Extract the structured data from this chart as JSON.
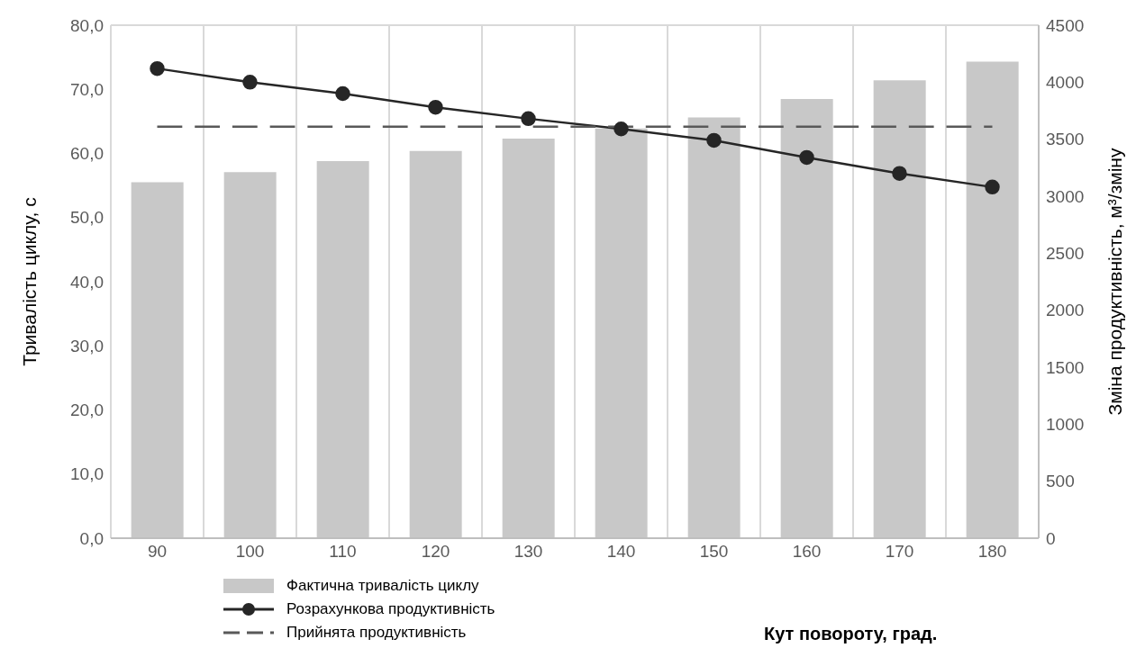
{
  "chart_data": {
    "type": "bar",
    "xlabel": "Кут повороту, град.",
    "ylabel": "Тривалість циклу, с",
    "y2label": "Зміна продуктивність, м³/зміну",
    "categories": [
      "90",
      "100",
      "110",
      "120",
      "130",
      "140",
      "150",
      "160",
      "170",
      "180"
    ],
    "series": [
      {
        "name": "Фактична тривалість циклу",
        "color": "#c8c8c8",
        "values": [
          55.5,
          57.1,
          58.8,
          60.4,
          62.3,
          63.9,
          65.6,
          68.5,
          71.4,
          74.3
        ]
      },
      {
        "name": "Розрахункова продуктивність",
        "type": "line",
        "axis": "y2",
        "color": "#262626",
        "marker": "circle",
        "line_style": "solid",
        "values": [
          4120,
          4000,
          3900,
          3780,
          3680,
          3590,
          3490,
          3340,
          3200,
          3080
        ]
      },
      {
        "name": "Прийнята продуктивність",
        "type": "line",
        "axis": "y2",
        "color": "#595959",
        "marker": "none",
        "line_style": "dashed",
        "values": [
          3610,
          3610,
          3610,
          3610,
          3610,
          3610,
          3610,
          3610,
          3610,
          3610
        ]
      }
    ],
    "ylim": [
      0,
      80
    ],
    "yticks": [
      {
        "value": 0,
        "label": "0,0"
      },
      {
        "value": 10,
        "label": "10,0"
      },
      {
        "value": 20,
        "label": "20,0"
      },
      {
        "value": 30,
        "label": "30,0"
      },
      {
        "value": 40,
        "label": "40,0"
      },
      {
        "value": 50,
        "label": "50,0"
      },
      {
        "value": 60,
        "label": "60,0"
      },
      {
        "value": 70,
        "label": "70,0"
      },
      {
        "value": 80,
        "label": "80,0"
      }
    ],
    "y2lim": [
      0,
      4500
    ],
    "y2ticks": [
      0,
      500,
      1000,
      1500,
      2000,
      2500,
      3000,
      3500,
      4000,
      4500
    ],
    "grid": true,
    "legend": "bottom"
  }
}
